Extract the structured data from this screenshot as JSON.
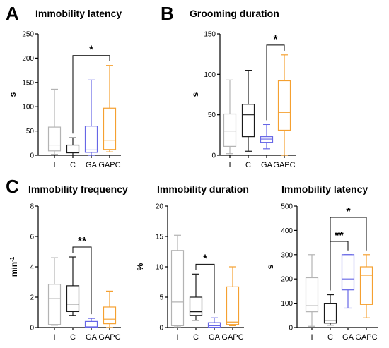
{
  "chart_data": [
    {
      "type": "box",
      "panel_letter": "A",
      "title": "Immobility latency",
      "ylabel": "s",
      "ylim": [
        0,
        250
      ],
      "yticks": [
        0,
        50,
        100,
        150,
        200,
        250
      ],
      "categories": [
        "I",
        "C",
        "GA",
        "GAPC"
      ],
      "colors": [
        "#b3b3b3",
        "#1a1a1a",
        "#6666e6",
        "#f5a030"
      ],
      "boxes": [
        {
          "min": 2,
          "q1": 9,
          "median": 21,
          "q3": 58,
          "max": 136
        },
        {
          "min": 0,
          "q1": 5,
          "median": 6,
          "q3": 21,
          "max": 36
        },
        {
          "min": 0,
          "q1": 6,
          "median": 11,
          "q3": 60,
          "max": 155
        },
        {
          "min": 7,
          "q1": 12,
          "median": 31,
          "q3": 97,
          "max": 185
        }
      ],
      "significance": [
        {
          "from": 1,
          "to": 3,
          "label": "*"
        }
      ]
    },
    {
      "type": "box",
      "panel_letter": "B",
      "title": "Grooming duration",
      "ylabel": "s",
      "ylim": [
        0,
        150
      ],
      "yticks": [
        0,
        50,
        100,
        150
      ],
      "categories": [
        "I",
        "C",
        "GA",
        "GAPC"
      ],
      "colors": [
        "#b3b3b3",
        "#1a1a1a",
        "#6666e6",
        "#f5a030"
      ],
      "boxes": [
        {
          "min": 2,
          "q1": 11,
          "median": 30,
          "q3": 51,
          "max": 93
        },
        {
          "min": 5,
          "q1": 23,
          "median": 50,
          "q3": 63,
          "max": 105
        },
        {
          "min": 8,
          "q1": 16,
          "median": 20,
          "q3": 23,
          "max": 38
        },
        {
          "min": 0,
          "q1": 31,
          "median": 53,
          "q3": 92,
          "max": 124
        }
      ],
      "significance": [
        {
          "from": 2,
          "to": 3,
          "label": "*"
        }
      ]
    },
    {
      "type": "box",
      "panel_letter": "C",
      "title": "Immobility frequency",
      "ylabel": "min",
      "ylabel_sup": "-1",
      "ylim": [
        0,
        8
      ],
      "yticks": [
        0,
        2,
        4,
        6,
        8
      ],
      "categories": [
        "I",
        "C",
        "GA",
        "GAPC"
      ],
      "colors": [
        "#b3b3b3",
        "#1a1a1a",
        "#6666e6",
        "#f5a030"
      ],
      "boxes": [
        {
          "min": 0.15,
          "q1": 0.2,
          "median": 1.9,
          "q3": 2.85,
          "max": 4.6
        },
        {
          "min": 0.8,
          "q1": 1.05,
          "median": 1.55,
          "q3": 2.75,
          "max": 4.65
        },
        {
          "min": 0,
          "q1": 0,
          "median": 0.05,
          "q3": 0.4,
          "max": 0.6
        },
        {
          "min": 0,
          "q1": 0.25,
          "median": 0.55,
          "q3": 1.35,
          "max": 2.4
        }
      ],
      "significance": [
        {
          "from": 1,
          "to": 2,
          "label": "**"
        }
      ]
    },
    {
      "type": "box",
      "title": "Immobility duration",
      "ylabel": "%",
      "ylim": [
        0,
        20
      ],
      "yticks": [
        0,
        5,
        10,
        15,
        20
      ],
      "categories": [
        "I",
        "C",
        "GA",
        "GAPC"
      ],
      "colors": [
        "#b3b3b3",
        "#1a1a1a",
        "#6666e6",
        "#f5a030"
      ],
      "boxes": [
        {
          "min": 0.1,
          "q1": 0.3,
          "median": 4.2,
          "q3": 12.7,
          "max": 15.2
        },
        {
          "min": 1.2,
          "q1": 2.0,
          "median": 2.6,
          "q3": 5.0,
          "max": 8.8
        },
        {
          "min": 0,
          "q1": 0.05,
          "median": 0.3,
          "q3": 0.8,
          "max": 1.6
        },
        {
          "min": 0.3,
          "q1": 0.5,
          "median": 0.9,
          "q3": 6.7,
          "max": 10.0
        }
      ],
      "significance": [
        {
          "from": 1,
          "to": 2,
          "label": "*"
        }
      ]
    },
    {
      "type": "box",
      "title": "Immobility latency",
      "ylabel": "s",
      "ylim": [
        0,
        500
      ],
      "yticks": [
        0,
        100,
        200,
        300,
        400,
        500
      ],
      "categories": [
        "I",
        "C",
        "GA",
        "GAPC"
      ],
      "colors": [
        "#b3b3b3",
        "#1a1a1a",
        "#6666e6",
        "#f5a030"
      ],
      "boxes": [
        {
          "min": 5,
          "q1": 65,
          "median": 90,
          "q3": 205,
          "max": 300
        },
        {
          "min": 10,
          "q1": 18,
          "median": 30,
          "q3": 100,
          "max": 135
        },
        {
          "min": 80,
          "q1": 155,
          "median": 200,
          "q3": 300,
          "max": 300
        },
        {
          "min": 40,
          "q1": 95,
          "median": 215,
          "q3": 250,
          "max": 300
        }
      ],
      "significance": [
        {
          "from": 1,
          "to": 2,
          "label": "**",
          "level": 1
        },
        {
          "from": 1,
          "to": 3,
          "label": "*",
          "level": 2
        }
      ]
    }
  ]
}
